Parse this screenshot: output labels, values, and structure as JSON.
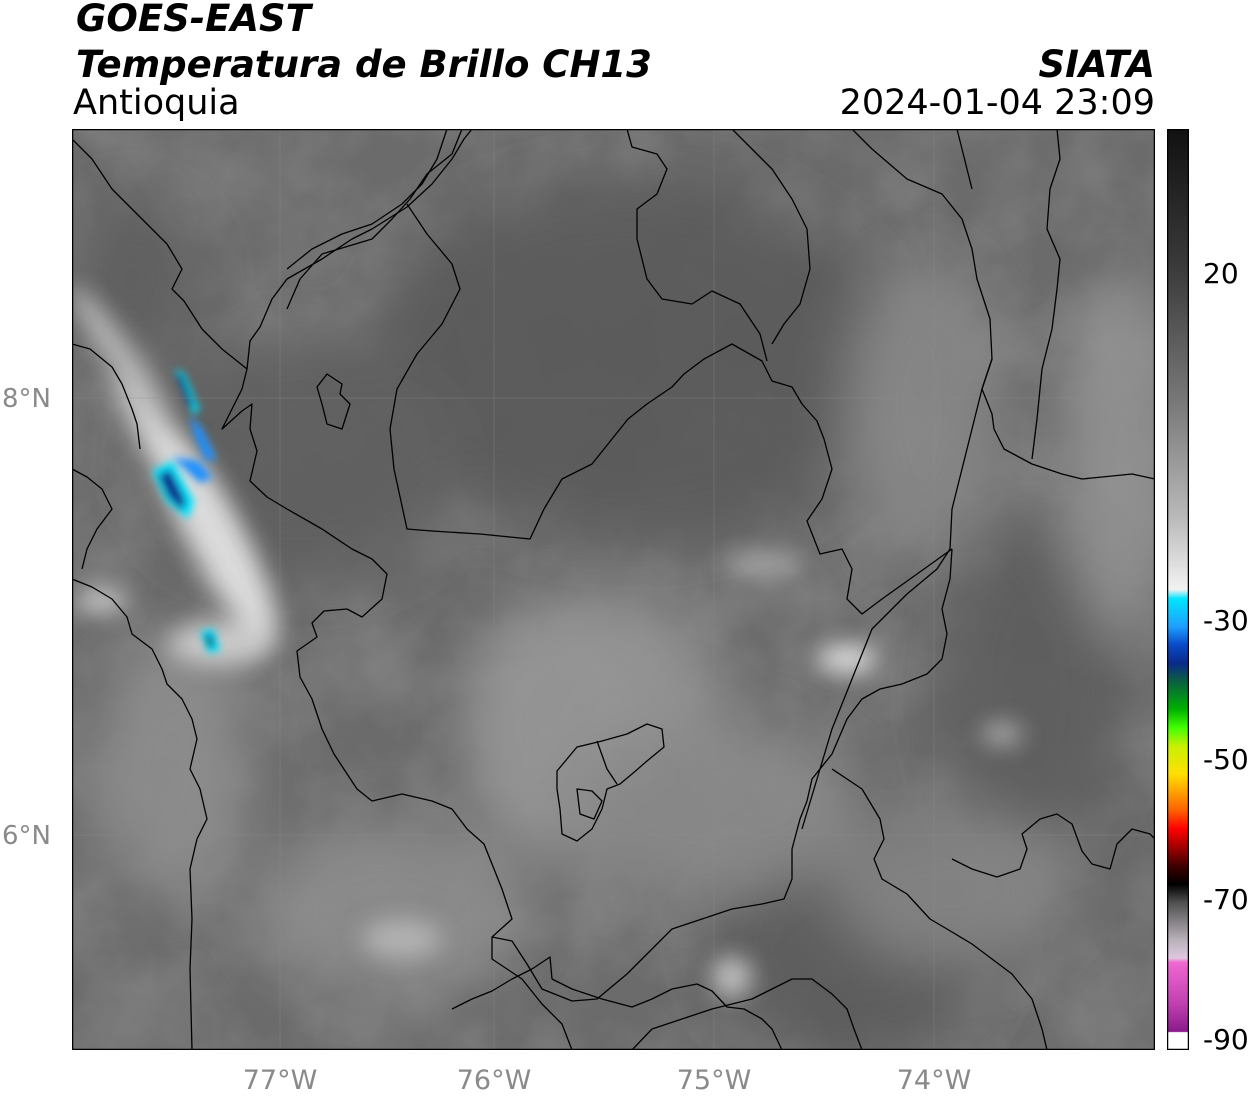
{
  "header": {
    "satellite": "GOES-EAST",
    "product": "Temperatura de Brillo CH13",
    "region": "Antioquia",
    "agency": "SIATA",
    "datetime": "2024-01-04 23:09"
  },
  "axes": {
    "lat_labels": [
      {
        "label": "8°N",
        "value": 8
      },
      {
        "label": "6°N",
        "value": 6
      }
    ],
    "lon_labels": [
      {
        "label": "77°W",
        "value": -77
      },
      {
        "label": "76°W",
        "value": -76
      },
      {
        "label": "75°W",
        "value": -75
      },
      {
        "label": "74°W",
        "value": -74
      }
    ],
    "lon_range": [
      -77.95,
      -73.0
    ],
    "lat_range": [
      5.22,
      9.25
    ],
    "grid": true
  },
  "colorbar": {
    "ticks": [
      {
        "label": "20",
        "value": 20
      },
      {
        "label": "-30",
        "value": -30
      },
      {
        "label": "-50",
        "value": -50
      },
      {
        "label": "-70",
        "value": -70
      },
      {
        "label": "-90",
        "value": -90
      }
    ],
    "range": [
      -91,
      41
    ],
    "colors": {
      "gray_dark": "#1a1a1a",
      "white": "#ffffff",
      "cyan": "#00e5ff",
      "blue": "#0a2a8a",
      "green": "#00c800",
      "yellow": "#ffe600",
      "orange": "#ff8c00",
      "red": "#ff0000",
      "black": "#000000",
      "pink": "#e85ac8",
      "purple": "#8a1a8a"
    }
  }
}
